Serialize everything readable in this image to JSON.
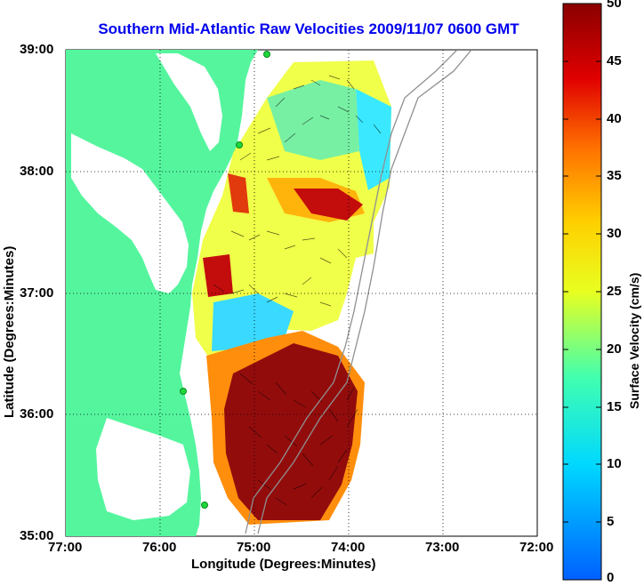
{
  "title": "Southern Mid-Atlantic Raw Velocities 2009/11/07 0600 GMT",
  "x_axis_label": "Longitude (Degrees:Minutes)",
  "y_axis_label": "Latitude (Degrees:Minutes)",
  "colorbar_label": "Surface Velocity (cm/s)",
  "x_ticks": [
    "77:00",
    "76:00",
    "75:00",
    "74:00",
    "73:00",
    "72:00"
  ],
  "y_ticks": [
    "39:00",
    "38:00",
    "37:00",
    "36:00",
    "35:00"
  ],
  "colorbar_ticks": [
    "0",
    "5",
    "10",
    "15",
    "20",
    "25",
    "30",
    "35",
    "40",
    "45",
    "50"
  ],
  "colorbar_range": [
    0,
    50
  ],
  "lon_range": [
    -77,
    -72
  ],
  "lat_range": [
    35,
    39
  ],
  "colors": {
    "land": "#55f59e",
    "title": "#0000ee",
    "station": "#1fd63a",
    "bathymetry": "#909090"
  }
}
